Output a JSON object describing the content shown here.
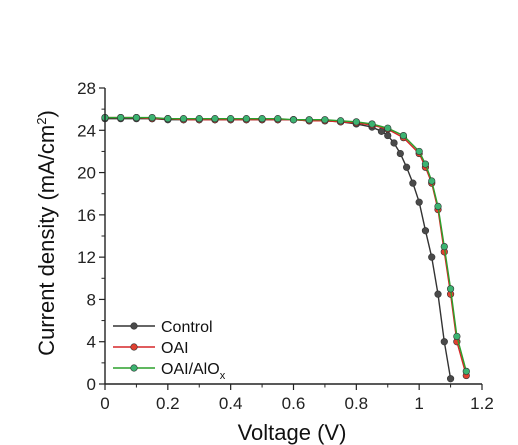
{
  "chart_data": {
    "type": "line",
    "xlabel": "Voltage (V)",
    "ylabel": {
      "prefix": "Current density (mA/cm",
      "sup": "2",
      "suffix": ")"
    },
    "xlim": [
      0,
      1.2
    ],
    "ylim": [
      0,
      28
    ],
    "xticks": [
      "0",
      "0.2",
      "0.4",
      "0.6",
      "0.8",
      "1",
      "1.2"
    ],
    "yticks": [
      "0",
      "4",
      "8",
      "12",
      "16",
      "20",
      "24",
      "28"
    ],
    "grid": false,
    "legend_position": "bottom-left",
    "series": [
      {
        "name": "Control",
        "color": "#333333",
        "marker_fill": "#4a4a4a",
        "x": [
          0,
          0.05,
          0.1,
          0.15,
          0.2,
          0.25,
          0.3,
          0.35,
          0.4,
          0.45,
          0.5,
          0.55,
          0.6,
          0.65,
          0.7,
          0.75,
          0.8,
          0.85,
          0.88,
          0.9,
          0.92,
          0.94,
          0.96,
          0.98,
          1.0,
          1.02,
          1.04,
          1.06,
          1.08,
          1.1
        ],
        "y": [
          25.1,
          25.1,
          25.1,
          25.1,
          25.0,
          25.0,
          25.0,
          25.0,
          25.0,
          25.0,
          25.0,
          25.0,
          25.0,
          24.9,
          24.9,
          24.8,
          24.6,
          24.3,
          23.9,
          23.5,
          22.8,
          21.8,
          20.5,
          19.0,
          17.2,
          14.5,
          12.0,
          8.5,
          4.0,
          0.5
        ]
      },
      {
        "name": "OAI",
        "color": "#d62728",
        "marker_fill": "#e04030",
        "x": [
          0,
          0.05,
          0.1,
          0.15,
          0.2,
          0.25,
          0.3,
          0.35,
          0.4,
          0.45,
          0.5,
          0.55,
          0.6,
          0.65,
          0.7,
          0.75,
          0.8,
          0.85,
          0.9,
          0.95,
          1.0,
          1.02,
          1.04,
          1.06,
          1.08,
          1.1,
          1.12,
          1.15
        ],
        "y": [
          25.2,
          25.2,
          25.2,
          25.1,
          25.1,
          25.0,
          25.0,
          25.0,
          25.0,
          25.0,
          25.0,
          25.0,
          25.0,
          24.9,
          24.9,
          24.8,
          24.7,
          24.5,
          24.1,
          23.3,
          21.8,
          20.5,
          19.0,
          16.5,
          12.5,
          8.5,
          4.0,
          0.8
        ]
      },
      {
        "name": "OAI/AlO",
        "name_sub": "x",
        "color": "#2ca02c",
        "marker_fill": "#3cb371",
        "x": [
          0,
          0.05,
          0.1,
          0.15,
          0.2,
          0.25,
          0.3,
          0.35,
          0.4,
          0.45,
          0.5,
          0.55,
          0.6,
          0.65,
          0.7,
          0.75,
          0.8,
          0.85,
          0.9,
          0.95,
          1.0,
          1.02,
          1.04,
          1.06,
          1.08,
          1.1,
          1.12,
          1.15
        ],
        "y": [
          25.2,
          25.2,
          25.2,
          25.2,
          25.1,
          25.1,
          25.1,
          25.1,
          25.1,
          25.1,
          25.1,
          25.1,
          25.0,
          25.0,
          25.0,
          24.9,
          24.8,
          24.6,
          24.2,
          23.5,
          22.0,
          20.8,
          19.2,
          16.8,
          13.0,
          9.0,
          4.5,
          1.2
        ]
      }
    ]
  }
}
